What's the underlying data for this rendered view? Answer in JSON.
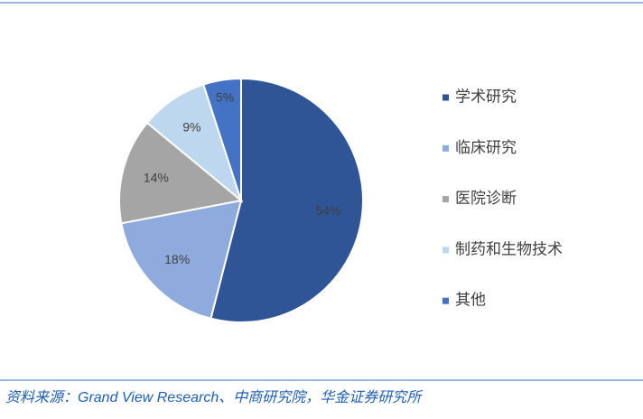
{
  "chart_data": {
    "type": "pie",
    "categories": [
      "学术研究",
      "临床研究",
      "医院诊断",
      "制药和生物技术",
      "其他"
    ],
    "values": [
      54,
      18,
      14,
      9,
      5
    ],
    "value_labels": [
      "54%",
      "18%",
      "14%",
      "9%",
      "5%"
    ],
    "colors": [
      "#2f5597",
      "#8faadc",
      "#a5a5a5",
      "#bdd7ee",
      "#4472c4"
    ],
    "legend": "right",
    "source": "资料来源：Grand View Research、中商研究院，华金证券研究所"
  }
}
